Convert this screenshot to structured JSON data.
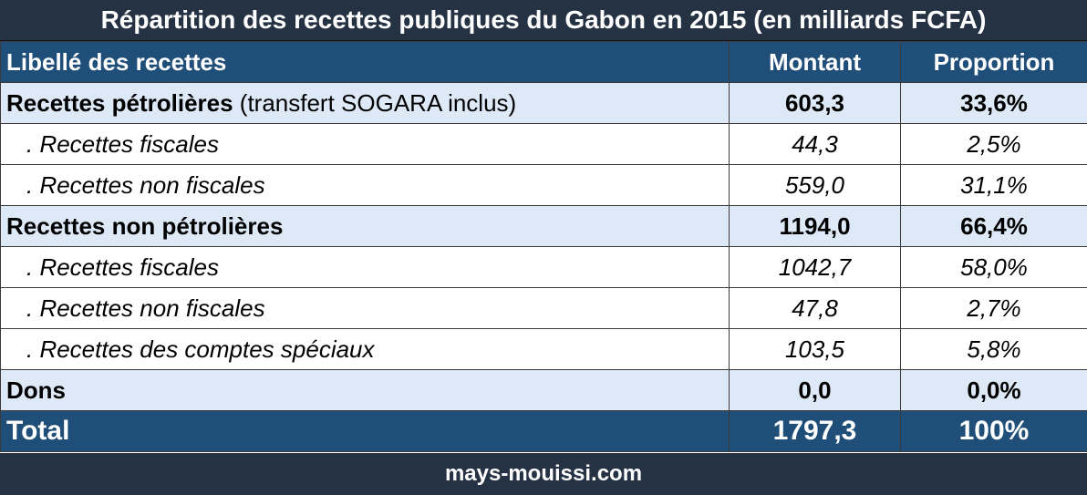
{
  "title": "Répartition des recettes publiques du Gabon en 2015 (en milliards FCFA)",
  "headers": {
    "label": "Libellé des recettes",
    "amount": "Montant",
    "share": "Proportion"
  },
  "rows": [
    {
      "label": "Recettes pétrolières",
      "note": " (transfert SOGARA inclus)",
      "amount": "603,3",
      "share": "33,6%"
    },
    {
      "label": ". Recettes fiscales",
      "amount": "44,3",
      "share": "2,5%"
    },
    {
      "label": ". Recettes non fiscales",
      "amount": "559,0",
      "share": "31,1%"
    },
    {
      "label": "Recettes non pétrolières",
      "amount": "1194,0",
      "share": "66,4%"
    },
    {
      "label": ". Recettes fiscales",
      "amount": "1042,7",
      "share": "58,0%"
    },
    {
      "label": ". Recettes non fiscales",
      "amount": "47,8",
      "share": "2,7%"
    },
    {
      "label": ". Recettes des comptes spéciaux",
      "amount": "103,5",
      "share": "5,8%"
    },
    {
      "label": "Dons",
      "amount": "0,0",
      "share": "0,0%"
    }
  ],
  "total": {
    "label": "Total",
    "amount": "1797,3",
    "share": "100%"
  },
  "footer": "mays-mouissi.com",
  "colors": {
    "dark_bar": "#253243",
    "header_blue": "#1f4e79",
    "group_row": "#dde9f6"
  }
}
